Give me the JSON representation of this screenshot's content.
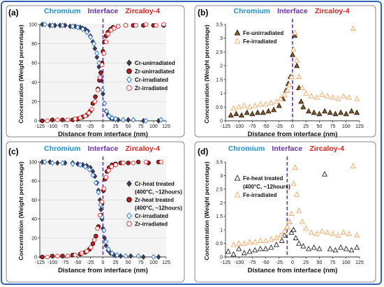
{
  "colors": {
    "chromium": "#1f8fd0",
    "interface": "#6a2fb0",
    "zircaloy": "#e02020",
    "frame": "#2f62b8",
    "cr_unirr": "#3b3b4f",
    "zr_unirr": "#c0181b",
    "cr_irr": "#1c6fd6",
    "zr_irr": "#ee2a2a",
    "fe_unirr": "#231a0c",
    "fe_unirr_fill": "#8a5a2a",
    "fe_irr": "#f2a663"
  },
  "chart_data": [
    {
      "label": "(a)",
      "type": "scatter",
      "region_labels": [
        "Chromium",
        "Interface",
        "Zircaloy-4"
      ],
      "xlabel": "Distance from interface (nm)",
      "ylabel": "Concentration (Weight percentage)",
      "xlim": [
        -125,
        125
      ],
      "ylim": [
        0,
        100
      ],
      "xticks": [
        -125,
        -100,
        -75,
        -50,
        -25,
        0,
        25,
        50,
        75,
        100,
        125
      ],
      "yticks": [
        0,
        20,
        40,
        60,
        80,
        100
      ],
      "interface_x": 0,
      "legend": [
        "Cr-unirradiated",
        "Zr-unirradiated",
        "Cr-irradiated",
        "Zr-irradiated"
      ],
      "series": [
        {
          "name": "Cr-unirradiated",
          "marker": "diamond",
          "filled": true,
          "x": [
            -120,
            -105,
            -95,
            -85,
            -75,
            -65,
            -55,
            -45,
            -40,
            -35,
            -30,
            -25,
            -20,
            -16,
            -12,
            -8,
            -5,
            -3,
            0,
            3,
            6,
            10,
            15,
            20,
            30,
            50,
            80,
            110
          ],
          "y": [
            100,
            99,
            99,
            99,
            99,
            98,
            98,
            97,
            96,
            95,
            93,
            88,
            82,
            75,
            66,
            56,
            50,
            42,
            28,
            18,
            10,
            6,
            3,
            2,
            1,
            1,
            0,
            0
          ]
        },
        {
          "name": "Zr-unirradiated",
          "marker": "circle",
          "filled": true,
          "x": [
            -120,
            -100,
            -80,
            -60,
            -50,
            -40,
            -32,
            -25,
            -20,
            -15,
            -10,
            -7,
            -4,
            -2,
            0,
            3,
            6,
            10,
            15,
            20,
            30,
            45,
            60,
            80,
            100,
            120
          ],
          "y": [
            0,
            1,
            1,
            1,
            2,
            4,
            6,
            10,
            18,
            25,
            33,
            42,
            50,
            60,
            72,
            82,
            88,
            92,
            95,
            97,
            98,
            99,
            99,
            99,
            99,
            99
          ]
        },
        {
          "name": "Cr-irradiated",
          "marker": "diamond",
          "filled": false,
          "x": [
            -115,
            -100,
            -80,
            -60,
            -50,
            -40,
            -32,
            -25,
            -18,
            -12,
            -8,
            -4,
            -1,
            3,
            7,
            12,
            18,
            25,
            40,
            60,
            85,
            115
          ],
          "y": [
            100,
            99,
            99,
            98,
            97,
            95,
            92,
            87,
            80,
            70,
            60,
            45,
            32,
            18,
            10,
            5,
            3,
            2,
            1,
            1,
            0,
            1
          ]
        },
        {
          "name": "Zr-irradiated",
          "marker": "circle",
          "filled": false,
          "x": [
            -110,
            -90,
            -70,
            -55,
            -45,
            -35,
            -28,
            -22,
            -16,
            -10,
            -6,
            -2,
            2,
            6,
            10,
            16,
            22,
            30,
            45,
            65,
            85,
            105,
            120
          ],
          "y": [
            0,
            1,
            1,
            2,
            3,
            5,
            8,
            12,
            20,
            32,
            45,
            58,
            70,
            82,
            90,
            94,
            96,
            98,
            99,
            99,
            100,
            99,
            100
          ]
        }
      ]
    },
    {
      "label": "(b)",
      "type": "scatter",
      "region_labels": [
        "Chromium",
        "Interface",
        "Zircaloy-4"
      ],
      "xlabel": "Distance from interface (nm)",
      "ylabel": "Concentration (Weight percentage)",
      "xlim": [
        -125,
        125
      ],
      "ylim": [
        0,
        3.5
      ],
      "xticks": [
        -125,
        -100,
        -75,
        -50,
        -25,
        0,
        25,
        50,
        75,
        100,
        125
      ],
      "yticks": [
        0,
        0.5,
        1,
        1.5,
        2,
        2.5,
        3,
        3.5
      ],
      "interface_x": 0,
      "legend": [
        "Fe-unirradiated",
        "Fe-irradiated"
      ],
      "series": [
        {
          "name": "Fe-unirradiated",
          "marker": "triangle",
          "filled": true,
          "x": [
            -115,
            -105,
            -95,
            -85,
            -75,
            -65,
            -55,
            -45,
            -35,
            -25,
            -18,
            -12,
            -8,
            -4,
            0,
            4,
            8,
            12,
            16,
            20,
            30,
            40,
            50,
            60,
            70,
            80,
            90,
            100,
            110,
            120
          ],
          "y": [
            0.2,
            0.25,
            0.2,
            0.3,
            0.25,
            0.3,
            0.3,
            0.35,
            0.4,
            0.55,
            0.8,
            1.1,
            1.35,
            1.6,
            2.4,
            3.1,
            2.0,
            1.2,
            0.7,
            0.5,
            0.35,
            0.3,
            0.25,
            0.35,
            0.3,
            0.25,
            0.3,
            0.25,
            0.35,
            0.3
          ]
        },
        {
          "name": "Fe-irradiated",
          "marker": "triangle",
          "filled": false,
          "x": [
            -110,
            -100,
            -90,
            -80,
            -70,
            -60,
            -50,
            -40,
            -30,
            -22,
            -15,
            -10,
            -6,
            -2,
            2,
            5,
            8,
            12,
            18,
            25,
            35,
            45,
            55,
            65,
            75,
            85,
            95,
            105,
            113,
            120
          ],
          "y": [
            0.45,
            0.5,
            0.55,
            0.5,
            0.55,
            0.6,
            0.6,
            0.65,
            0.7,
            0.8,
            0.95,
            1.1,
            1.3,
            1.6,
            2.6,
            3.2,
            2.2,
            1.6,
            1.2,
            1.0,
            0.9,
            0.85,
            0.95,
            0.9,
            0.85,
            0.8,
            0.9,
            0.85,
            3.35,
            0.8
          ]
        }
      ]
    },
    {
      "label": "(c)",
      "type": "scatter",
      "region_labels": [
        "Chromium",
        "Interface",
        "Zircaloy-4"
      ],
      "xlabel": "Distance from interface (nm)",
      "ylabel": "Concentration (Weight percentage)",
      "xlim": [
        -125,
        125
      ],
      "ylim": [
        0,
        100
      ],
      "xticks": [
        -125,
        -100,
        -75,
        -50,
        -25,
        0,
        25,
        50,
        75,
        100,
        125
      ],
      "yticks": [
        0,
        20,
        40,
        60,
        80,
        100
      ],
      "interface_x": 0,
      "legend": [
        "Cr-heat treated",
        "(400°C, ~12hours)",
        "Zr-heat treated",
        "(400°C, ~12hours)",
        "Cr-irradiated",
        "Zr-irradiated"
      ],
      "series": [
        {
          "name": "Cr-heat treated",
          "marker": "diamond",
          "filled": true,
          "x": [
            -120,
            -105,
            -90,
            -75,
            -60,
            -50,
            -40,
            -32,
            -25,
            -20,
            -16,
            -12,
            -9,
            -6,
            -4,
            -2,
            0,
            3,
            6,
            10,
            15,
            22,
            35,
            55,
            80,
            110
          ],
          "y": [
            100,
            100,
            99,
            99,
            99,
            98,
            97,
            96,
            94,
            90,
            85,
            78,
            70,
            60,
            50,
            40,
            30,
            20,
            12,
            7,
            4,
            2,
            1,
            1,
            0,
            0
          ]
        },
        {
          "name": "Zr-heat treated",
          "marker": "circle",
          "filled": true,
          "x": [
            -120,
            -100,
            -80,
            -60,
            -45,
            -35,
            -27,
            -20,
            -14,
            -9,
            -5,
            -2,
            1,
            4,
            8,
            12,
            18,
            25,
            35,
            50,
            70,
            90,
            110
          ],
          "y": [
            0,
            1,
            1,
            2,
            3,
            5,
            8,
            14,
            22,
            32,
            44,
            56,
            70,
            82,
            90,
            94,
            97,
            98,
            99,
            99,
            100,
            99,
            100
          ]
        },
        {
          "name": "Cr-irradiated",
          "marker": "diamond",
          "filled": false,
          "x": [
            -115,
            -100,
            -80,
            -60,
            -45,
            -35,
            -27,
            -20,
            -14,
            -9,
            -5,
            -2,
            2,
            6,
            11,
            18,
            28,
            45,
            70,
            100
          ],
          "y": [
            100,
            99,
            99,
            98,
            97,
            95,
            92,
            86,
            78,
            68,
            55,
            42,
            28,
            16,
            8,
            4,
            2,
            1,
            1,
            0
          ]
        },
        {
          "name": "Zr-irradiated",
          "marker": "circle",
          "filled": false,
          "x": [
            -110,
            -90,
            -70,
            -55,
            -42,
            -32,
            -24,
            -17,
            -11,
            -6,
            -2,
            2,
            6,
            11,
            17,
            25,
            40,
            60,
            85,
            115
          ],
          "y": [
            0,
            1,
            1,
            2,
            4,
            6,
            10,
            18,
            30,
            44,
            58,
            72,
            84,
            91,
            95,
            97,
            99,
            99,
            100,
            100
          ]
        }
      ]
    },
    {
      "label": "(d)",
      "type": "scatter",
      "region_labels": [
        "Chromium",
        "Interface",
        "Zircaloy-4"
      ],
      "xlabel": "Distance from interface (nm)",
      "ylabel": "Concentration (Weight percentage)",
      "xlim": [
        -125,
        125
      ],
      "ylim": [
        0,
        3.5
      ],
      "xticks": [
        -125,
        -100,
        -75,
        -50,
        -25,
        0,
        25,
        50,
        75,
        100,
        125
      ],
      "yticks": [
        0,
        0.5,
        1,
        1.5,
        2,
        2.5,
        3,
        3.5
      ],
      "interface_x": -10,
      "legend": [
        "Fe-heat treated",
        "(400°C, ~12hours)",
        "Fe-irradiated"
      ],
      "series": [
        {
          "name": "Fe-heat treated",
          "marker": "triangle",
          "filled": false,
          "x": [
            -120,
            -110,
            -100,
            -90,
            -80,
            -70,
            -60,
            -50,
            -40,
            -30,
            -20,
            -15,
            -10,
            -6,
            -2,
            2,
            6,
            12,
            20,
            30,
            40,
            50,
            60,
            70,
            80,
            90,
            100,
            110,
            120
          ],
          "y": [
            0.2,
            0.1,
            0.3,
            0.15,
            0.2,
            0.25,
            0.3,
            0.3,
            0.35,
            0.45,
            0.6,
            0.8,
            1.1,
            1.3,
            0.9,
            1.0,
            0.7,
            0.5,
            0.4,
            0.3,
            0.35,
            0.3,
            3.05,
            0.3,
            0.25,
            0.35,
            0.3,
            0.25,
            0.35
          ]
        },
        {
          "name": "Fe-irradiated",
          "marker": "triangle",
          "filled": false,
          "x": [
            -110,
            -100,
            -90,
            -80,
            -70,
            -60,
            -50,
            -40,
            -30,
            -22,
            -15,
            -10,
            -6,
            -2,
            2,
            5,
            8,
            12,
            18,
            25,
            35,
            45,
            55,
            65,
            75,
            85,
            95,
            105,
            113,
            120
          ],
          "y": [
            0.45,
            0.5,
            0.5,
            0.55,
            0.55,
            0.6,
            0.6,
            0.65,
            0.7,
            0.8,
            0.95,
            1.1,
            1.3,
            1.6,
            2.7,
            3.3,
            2.3,
            1.7,
            1.3,
            1.05,
            0.9,
            0.85,
            0.95,
            0.9,
            0.85,
            0.8,
            0.9,
            0.85,
            3.35,
            0.8
          ]
        }
      ]
    }
  ]
}
